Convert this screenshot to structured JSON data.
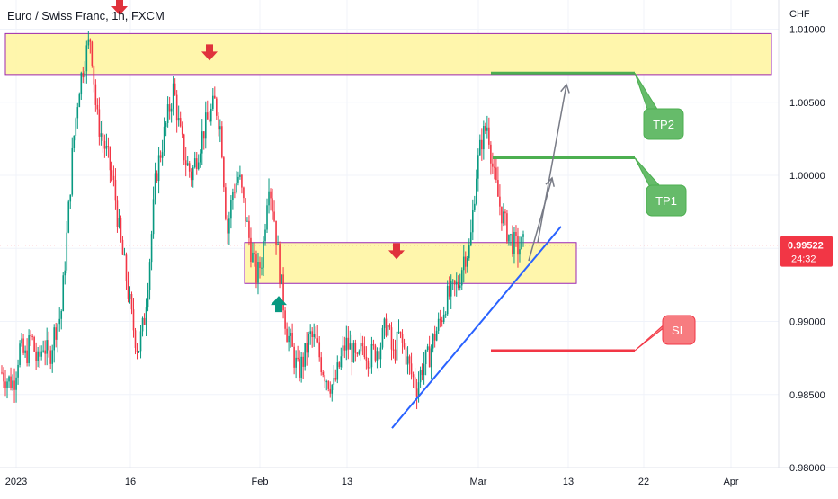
{
  "chart_data": {
    "type": "candlestick",
    "title": "Euro / Swiss Franc, 1h, FXCM",
    "ylabel": "CHF",
    "ylim": [
      0.98,
      1.012
    ],
    "x_ticks": [
      "2023",
      "16",
      "Feb",
      "13",
      "Mar",
      "13",
      "22",
      "Apr"
    ],
    "y_ticks": [
      "1.01000",
      "1.00500",
      "1.00000",
      "0.99500",
      "0.99000",
      "0.98500",
      "0.98000"
    ],
    "y_tick_values": [
      1.01,
      1.005,
      1.0,
      0.995,
      0.99,
      0.985,
      0.98
    ],
    "last_price": "0.99522",
    "last_price_value": 0.99522,
    "countdown": "24:32",
    "price_path": [
      0.9865,
      0.986,
      0.9858,
      0.9882,
      0.9875,
      0.989,
      0.987,
      0.9885,
      0.9875,
      0.9895,
      0.9905,
      0.996,
      1.002,
      1.006,
      1.008,
      1.0095,
      1.004,
      1.0025,
      1.001,
      0.999,
      0.9955,
      0.993,
      0.99,
      0.988,
      0.99,
      0.9945,
      1.0,
      1.002,
      1.004,
      1.006,
      1.003,
      1.001,
      1.0,
      1.0015,
      1.003,
      1.004,
      1.005,
      1.003,
      0.996,
      0.999,
      1.0,
      0.9975,
      0.995,
      0.993,
      0.9945,
      1.0,
      0.997,
      0.993,
      0.9895,
      0.988,
      0.9865,
      0.9875,
      0.989,
      0.9885,
      0.987,
      0.986,
      0.9855,
      0.987,
      0.9885,
      0.988,
      0.987,
      0.9885,
      0.9875,
      0.988,
      0.9885,
      0.99,
      0.9875,
      0.989,
      0.988,
      0.9865,
      0.9855,
      0.987,
      0.9875,
      0.989,
      0.99,
      0.9915,
      0.992,
      0.9925,
      0.9945,
      0.995,
      1.0,
      1.0025,
      1.0035,
      1.0,
      0.998,
      0.9965,
      0.9955,
      0.995,
      0.9952
    ],
    "zones": [
      {
        "top": 1.0097,
        "bottom": 1.0069
      },
      {
        "top": 0.9954,
        "bottom": 0.9926
      }
    ],
    "markers": [
      {
        "type": "down-arrow",
        "x": 133,
        "price": 1.0112,
        "color": "#e0323c"
      },
      {
        "type": "down-arrow",
        "x": 233,
        "price": 1.0081,
        "color": "#e0323c"
      },
      {
        "type": "up-arrow",
        "x": 310,
        "price": 0.9915,
        "color": "#089981"
      },
      {
        "type": "down-arrow",
        "x": 441,
        "price": 0.9945,
        "color": "#e0323c"
      }
    ],
    "trend_line": {
      "x1": 436,
      "y1": 0.9827,
      "x2": 624,
      "y2": 0.9965,
      "color": "#2962ff"
    },
    "levels": [
      {
        "label": "TP2",
        "price": 1.007,
        "color": "#4caf50"
      },
      {
        "label": "TP1",
        "price": 1.0012,
        "color": "#4caf50"
      },
      {
        "label": "SL",
        "price": 0.988,
        "color": "#f23645"
      }
    ],
    "colors": {
      "up": "#089981",
      "down": "#f23645",
      "zone_fill": "#fff59d",
      "zone_border": "#9c27b0",
      "price_tag": "#f23645",
      "label_green": "#66bb6a",
      "label_red": "#f77c80"
    }
  }
}
